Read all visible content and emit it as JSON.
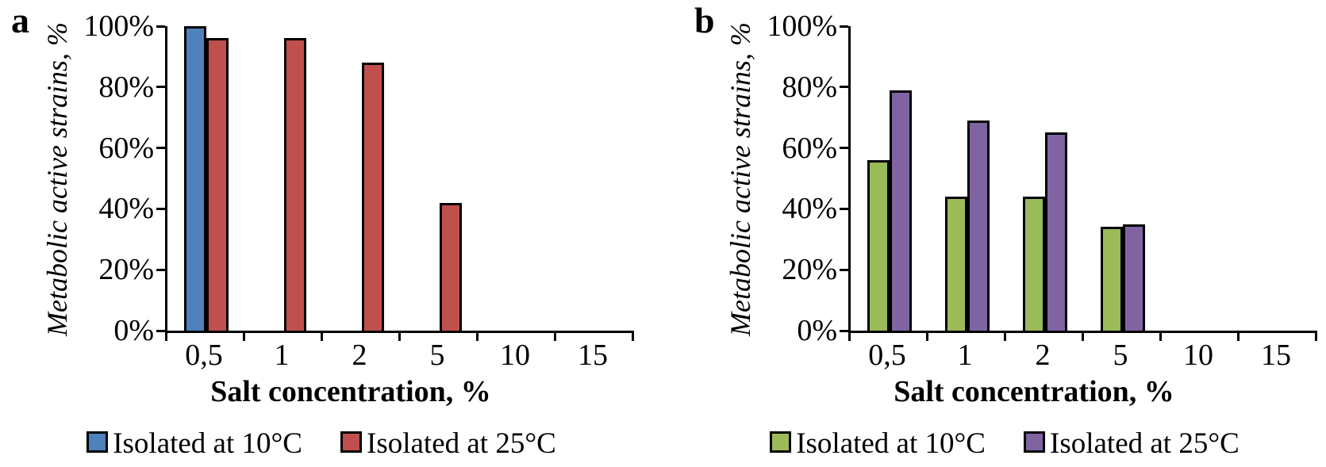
{
  "figure": {
    "background_color": "#ffffff",
    "text_color": "#000000",
    "axis_color": "#000000"
  },
  "chart_data": [
    {
      "type": "bar",
      "panel_label": "a",
      "title": "",
      "xlabel": "Salt concentration, %",
      "ylabel": "Metabolic active strains, %",
      "categories": [
        "0,5",
        "1",
        "2",
        "5",
        "10",
        "15"
      ],
      "series": [
        {
          "name": "Isolated at 10°C",
          "color": "#4F81BD",
          "values": [
            100,
            0,
            0,
            0,
            0,
            0
          ]
        },
        {
          "name": "Isolated at 25°C",
          "color": "#C0504D",
          "values": [
            96,
            96,
            88,
            42,
            0,
            0
          ]
        }
      ],
      "ylim": [
        0,
        100
      ],
      "ytick_step": 20,
      "ytick_labels": [
        "0%",
        "20%",
        "40%",
        "60%",
        "80%",
        "100%"
      ],
      "grid": false,
      "legend_position": "bottom"
    },
    {
      "type": "bar",
      "panel_label": "b",
      "title": "",
      "xlabel": "Salt concentration, %",
      "ylabel": "Metabolic active strains, %",
      "categories": [
        "0,5",
        "1",
        "2",
        "5",
        "10",
        "15"
      ],
      "series": [
        {
          "name": "Isolated at 10°C",
          "color": "#9BBB59",
          "values": [
            56,
            44,
            44,
            34,
            0,
            0
          ]
        },
        {
          "name": "Isolated at 25°C",
          "color": "#8064A2",
          "values": [
            79,
            69,
            65,
            35,
            0,
            0
          ]
        }
      ],
      "ylim": [
        0,
        100
      ],
      "ytick_step": 20,
      "ytick_labels": [
        "0%",
        "20%",
        "40%",
        "60%",
        "80%",
        "100%"
      ],
      "grid": false,
      "legend_position": "bottom"
    }
  ]
}
